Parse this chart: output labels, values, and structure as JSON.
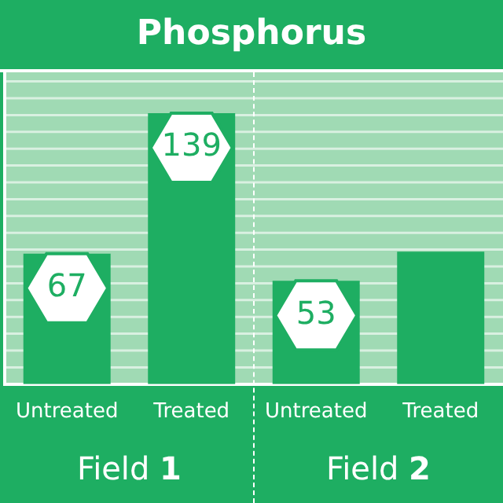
{
  "chart_data": {
    "type": "bar",
    "title": "Phosphorus",
    "categories": [
      "Untreated",
      "Treated",
      "Untreated",
      "Treated"
    ],
    "values": [
      67,
      139,
      53,
      68
    ],
    "color": "#1eae62",
    "value_labels": [
      "67",
      "139",
      "53",
      null
    ],
    "legend": false,
    "annotations": [
      "Field 1",
      "Field 2"
    ]
  }
}
